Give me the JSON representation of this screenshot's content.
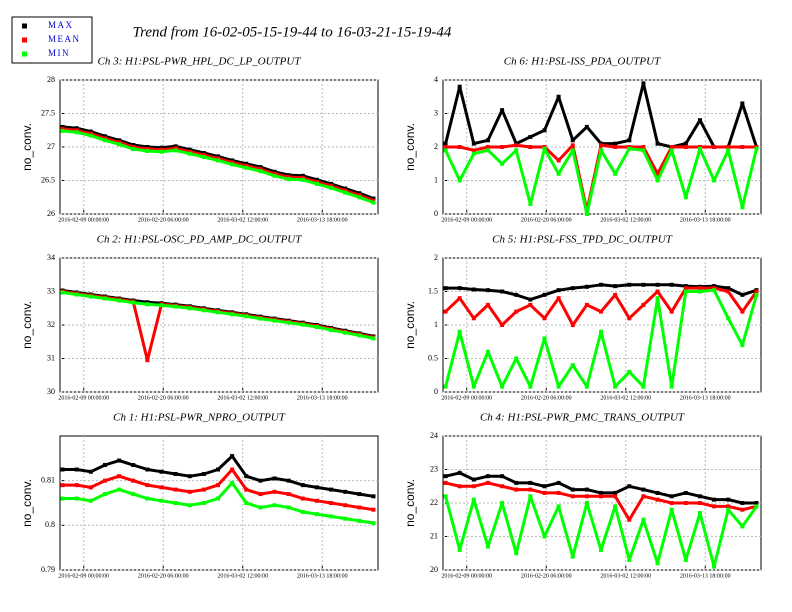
{
  "title": "Trend from 16-02-05-15-19-44 to 16-03-21-15-19-44",
  "chart_data": [
    {
      "type": "line",
      "title": "Ch 3: H1:PSL-PWR_HPL_DC_LP_OUTPUT",
      "ylabel": "no_conv.",
      "x": [
        "2016-02-06 00:00:00",
        "2016-02-08 00:00:00",
        "2016-02-10 00:00:00",
        "2016-02-12 00:00:00",
        "2016-02-14 00:00:00",
        "2016-02-16 00:00:00",
        "2016-02-18 00:00:00",
        "2016-02-20 00:00:00",
        "2016-02-22 00:00:00",
        "2016-02-24 00:00:00",
        "2016-02-26 00:00:00",
        "2016-02-28 00:00:00",
        "2016-03-01 00:00:00",
        "2016-03-03 00:00:00",
        "2016-03-05 00:00:00",
        "2016-03-07 00:00:00",
        "2016-03-09 00:00:00",
        "2016-03-11 00:00:00",
        "2016-03-13 00:00:00",
        "2016-03-15 00:00:00",
        "2016-03-17 00:00:00",
        "2016-03-19 00:00:00",
        "2016-03-21 00:00:00"
      ],
      "xlim": [
        "2016-02-05 15:19:44",
        "2016-03-21 15:19:44"
      ],
      "xticks": [
        "2016-02-09 00:00:00",
        "2016-02-20 06:00:00",
        "2016-03-02 12:00:00",
        "2016-03-13 18:00:00"
      ],
      "ylim": [
        26,
        28
      ],
      "yticks": [
        26,
        26.5,
        27,
        27.5,
        28
      ],
      "grid": true,
      "series": [
        {
          "name": "MAX",
          "color": "#000000",
          "values": [
            27.3,
            27.28,
            27.23,
            27.16,
            27.1,
            27.03,
            27.0,
            26.99,
            27.01,
            26.96,
            26.91,
            26.86,
            26.8,
            26.75,
            26.7,
            26.63,
            26.58,
            26.57,
            26.51,
            26.45,
            26.38,
            26.31,
            26.23
          ]
        },
        {
          "name": "MEAN",
          "color": "#ff0000",
          "values": [
            27.27,
            27.25,
            27.2,
            27.13,
            27.07,
            27.0,
            26.97,
            26.96,
            26.98,
            26.93,
            26.88,
            26.83,
            26.77,
            26.72,
            26.67,
            26.6,
            26.55,
            26.54,
            26.48,
            26.42,
            26.35,
            26.28,
            26.2
          ]
        },
        {
          "name": "MIN",
          "color": "#00ff00",
          "values": [
            27.24,
            27.22,
            27.17,
            27.1,
            27.04,
            26.97,
            26.94,
            26.93,
            26.95,
            26.9,
            26.85,
            26.8,
            26.74,
            26.69,
            26.64,
            26.57,
            26.52,
            26.51,
            26.45,
            26.39,
            26.32,
            26.25,
            26.17
          ]
        }
      ]
    },
    {
      "type": "line",
      "title": "Ch 2: H1:PSL-OSC_PD_AMP_DC_OUTPUT",
      "ylabel": "no_conv.",
      "x": [
        "2016-02-06 00:00:00",
        "2016-02-08 00:00:00",
        "2016-02-10 00:00:00",
        "2016-02-12 00:00:00",
        "2016-02-14 00:00:00",
        "2016-02-16 00:00:00",
        "2016-02-18 00:00:00",
        "2016-02-20 00:00:00",
        "2016-02-22 00:00:00",
        "2016-02-24 00:00:00",
        "2016-02-26 00:00:00",
        "2016-02-28 00:00:00",
        "2016-03-01 00:00:00",
        "2016-03-03 00:00:00",
        "2016-03-05 00:00:00",
        "2016-03-07 00:00:00",
        "2016-03-09 00:00:00",
        "2016-03-11 00:00:00",
        "2016-03-13 00:00:00",
        "2016-03-15 00:00:00",
        "2016-03-17 00:00:00",
        "2016-03-19 00:00:00",
        "2016-03-21 00:00:00"
      ],
      "xlim": [
        "2016-02-05 15:19:44",
        "2016-03-21 15:19:44"
      ],
      "xticks": [
        "2016-02-09 00:00:00",
        "2016-02-20 06:00:00",
        "2016-03-02 12:00:00",
        "2016-03-13 18:00:00"
      ],
      "ylim": [
        30,
        34
      ],
      "yticks": [
        30,
        31,
        32,
        33,
        34
      ],
      "grid": true,
      "series": [
        {
          "name": "MAX",
          "color": "#000000",
          "values": [
            33.03,
            32.97,
            32.91,
            32.85,
            32.79,
            32.73,
            32.68,
            32.65,
            32.61,
            32.56,
            32.5,
            32.44,
            32.38,
            32.32,
            32.25,
            32.19,
            32.13,
            32.07,
            32.0,
            31.91,
            31.83,
            31.75,
            31.66
          ]
        },
        {
          "name": "MEAN",
          "color": "#ff0000",
          "values": [
            33.0,
            32.94,
            32.88,
            32.82,
            32.76,
            32.7,
            30.95,
            32.62,
            32.58,
            32.53,
            32.47,
            32.41,
            32.35,
            32.29,
            32.22,
            32.16,
            32.1,
            32.04,
            31.97,
            31.88,
            31.8,
            31.72,
            31.63
          ]
        },
        {
          "name": "MIN",
          "color": "#00ff00",
          "values": [
            32.97,
            32.91,
            32.85,
            32.79,
            32.73,
            32.67,
            32.62,
            32.59,
            32.55,
            32.5,
            32.44,
            32.38,
            32.32,
            32.26,
            32.19,
            32.13,
            32.07,
            32.01,
            31.94,
            31.85,
            31.77,
            31.69,
            31.6
          ]
        }
      ]
    },
    {
      "type": "line",
      "title": "Ch 1: H1:PSL-PWR_NPRO_OUTPUT",
      "ylabel": "no_conv.",
      "x": [
        "2016-02-06 00:00:00",
        "2016-02-08 00:00:00",
        "2016-02-10 00:00:00",
        "2016-02-12 00:00:00",
        "2016-02-14 00:00:00",
        "2016-02-16 00:00:00",
        "2016-02-18 00:00:00",
        "2016-02-20 00:00:00",
        "2016-02-22 00:00:00",
        "2016-02-24 00:00:00",
        "2016-02-26 00:00:00",
        "2016-02-28 00:00:00",
        "2016-03-01 00:00:00",
        "2016-03-03 00:00:00",
        "2016-03-05 00:00:00",
        "2016-03-07 00:00:00",
        "2016-03-09 00:00:00",
        "2016-03-11 00:00:00",
        "2016-03-13 00:00:00",
        "2016-03-15 00:00:00",
        "2016-03-17 00:00:00",
        "2016-03-19 00:00:00",
        "2016-03-21 00:00:00"
      ],
      "xlim": [
        "2016-02-05 15:19:44",
        "2016-03-21 15:19:44"
      ],
      "xticks": [
        "2016-02-09 00:00:00",
        "2016-02-20 06:00:00",
        "2016-03-02 12:00:00",
        "2016-03-13 18:00:00"
      ],
      "ylim": [
        0.79,
        0.82
      ],
      "yticks": [
        0.79,
        0.8,
        0.81
      ],
      "grid": true,
      "series": [
        {
          "name": "MAX",
          "color": "#000000",
          "values": [
            0.8125,
            0.8125,
            0.812,
            0.8135,
            0.8145,
            0.8135,
            0.8125,
            0.812,
            0.8115,
            0.811,
            0.8115,
            0.8125,
            0.8155,
            0.811,
            0.81,
            0.8105,
            0.81,
            0.809,
            0.8085,
            0.808,
            0.8075,
            0.807,
            0.8065
          ]
        },
        {
          "name": "MEAN",
          "color": "#ff0000",
          "values": [
            0.809,
            0.809,
            0.8085,
            0.81,
            0.811,
            0.81,
            0.809,
            0.8085,
            0.808,
            0.8075,
            0.808,
            0.809,
            0.8125,
            0.808,
            0.807,
            0.8075,
            0.807,
            0.806,
            0.8055,
            0.805,
            0.8045,
            0.804,
            0.8035
          ]
        },
        {
          "name": "MIN",
          "color": "#00ff00",
          "values": [
            0.806,
            0.806,
            0.8055,
            0.807,
            0.808,
            0.807,
            0.806,
            0.8055,
            0.805,
            0.8045,
            0.805,
            0.806,
            0.8095,
            0.805,
            0.804,
            0.8045,
            0.804,
            0.803,
            0.8025,
            0.802,
            0.8015,
            0.801,
            0.8005
          ]
        }
      ]
    },
    {
      "type": "line",
      "title": "Ch 6: H1:PSL-ISS_PDA_OUTPUT",
      "ylabel": "no_conv.",
      "x": [
        "2016-02-06 00:00:00",
        "2016-02-08 00:00:00",
        "2016-02-10 00:00:00",
        "2016-02-12 00:00:00",
        "2016-02-14 00:00:00",
        "2016-02-16 00:00:00",
        "2016-02-18 00:00:00",
        "2016-02-20 00:00:00",
        "2016-02-22 00:00:00",
        "2016-02-24 00:00:00",
        "2016-02-26 00:00:00",
        "2016-02-28 00:00:00",
        "2016-03-01 00:00:00",
        "2016-03-03 00:00:00",
        "2016-03-05 00:00:00",
        "2016-03-07 00:00:00",
        "2016-03-09 00:00:00",
        "2016-03-11 00:00:00",
        "2016-03-13 00:00:00",
        "2016-03-15 00:00:00",
        "2016-03-17 00:00:00",
        "2016-03-19 00:00:00",
        "2016-03-21 00:00:00"
      ],
      "xlim": [
        "2016-02-05 15:19:44",
        "2016-03-21 15:19:44"
      ],
      "xticks": [
        "2016-02-09 00:00:00",
        "2016-02-20 06:00:00",
        "2016-03-02 12:00:00",
        "2016-03-13 18:00:00"
      ],
      "ylim": [
        0,
        4
      ],
      "yticks": [
        0,
        1,
        2,
        3,
        4
      ],
      "grid": true,
      "series": [
        {
          "name": "MAX",
          "color": "#000000",
          "values": [
            2.1,
            3.8,
            2.1,
            2.2,
            3.1,
            2.1,
            2.3,
            2.5,
            3.5,
            2.2,
            2.6,
            2.1,
            2.1,
            2.2,
            3.9,
            2.1,
            2.0,
            2.1,
            2.8,
            2.0,
            2.0,
            3.3,
            2.0
          ]
        },
        {
          "name": "MEAN",
          "color": "#ff0000",
          "values": [
            2.0,
            2.0,
            1.9,
            2.0,
            2.0,
            2.05,
            2.0,
            2.0,
            1.6,
            2.05,
            0.1,
            2.05,
            2.0,
            2.0,
            2.0,
            1.2,
            2.0,
            2.0,
            2.0,
            2.0,
            2.0,
            2.0,
            2.0
          ]
        },
        {
          "name": "MIN",
          "color": "#00ff00",
          "values": [
            1.9,
            1.0,
            1.8,
            1.9,
            1.5,
            1.9,
            0.3,
            1.95,
            1.2,
            1.9,
            0.0,
            1.9,
            1.2,
            1.95,
            1.9,
            1.0,
            1.9,
            0.5,
            1.95,
            1.0,
            1.9,
            0.2,
            1.95
          ]
        }
      ]
    },
    {
      "type": "line",
      "title": "Ch 5: H1:PSL-FSS_TPD_DC_OUTPUT",
      "ylabel": "no_conv.",
      "x": [
        "2016-02-06 00:00:00",
        "2016-02-08 00:00:00",
        "2016-02-10 00:00:00",
        "2016-02-12 00:00:00",
        "2016-02-14 00:00:00",
        "2016-02-16 00:00:00",
        "2016-02-18 00:00:00",
        "2016-02-20 00:00:00",
        "2016-02-22 00:00:00",
        "2016-02-24 00:00:00",
        "2016-02-26 00:00:00",
        "2016-02-28 00:00:00",
        "2016-03-01 00:00:00",
        "2016-03-03 00:00:00",
        "2016-03-05 00:00:00",
        "2016-03-07 00:00:00",
        "2016-03-09 00:00:00",
        "2016-03-11 00:00:00",
        "2016-03-13 00:00:00",
        "2016-03-15 00:00:00",
        "2016-03-17 00:00:00",
        "2016-03-19 00:00:00",
        "2016-03-21 00:00:00"
      ],
      "xlim": [
        "2016-02-05 15:19:44",
        "2016-03-21 15:19:44"
      ],
      "xticks": [
        "2016-02-09 00:00:00",
        "2016-02-20 06:00:00",
        "2016-03-02 12:00:00",
        "2016-03-13 18:00:00"
      ],
      "ylim": [
        0,
        2
      ],
      "yticks": [
        0,
        0.5,
        1,
        1.5,
        2
      ],
      "grid": true,
      "series": [
        {
          "name": "MAX",
          "color": "#000000",
          "values": [
            1.55,
            1.55,
            1.53,
            1.52,
            1.5,
            1.45,
            1.38,
            1.45,
            1.52,
            1.55,
            1.57,
            1.6,
            1.58,
            1.6,
            1.6,
            1.6,
            1.6,
            1.58,
            1.57,
            1.58,
            1.55,
            1.45,
            1.52
          ]
        },
        {
          "name": "MEAN",
          "color": "#ff0000",
          "values": [
            1.2,
            1.4,
            1.1,
            1.3,
            1.0,
            1.2,
            1.3,
            1.1,
            1.4,
            1.0,
            1.3,
            1.2,
            1.45,
            1.1,
            1.3,
            1.5,
            1.2,
            1.55,
            1.55,
            1.55,
            1.5,
            1.2,
            1.5
          ]
        },
        {
          "name": "MIN",
          "color": "#00ff00",
          "values": [
            0.08,
            0.9,
            0.08,
            0.6,
            0.08,
            0.5,
            0.08,
            0.8,
            0.08,
            0.4,
            0.08,
            0.9,
            0.08,
            0.3,
            0.08,
            1.4,
            0.08,
            1.5,
            1.5,
            1.52,
            1.1,
            0.7,
            1.45
          ]
        }
      ]
    },
    {
      "type": "line",
      "title": "Ch 4: H1:PSL-PWR_PMC_TRANS_OUTPUT",
      "ylabel": "no_conv.",
      "x": [
        "2016-02-06 00:00:00",
        "2016-02-08 00:00:00",
        "2016-02-10 00:00:00",
        "2016-02-12 00:00:00",
        "2016-02-14 00:00:00",
        "2016-02-16 00:00:00",
        "2016-02-18 00:00:00",
        "2016-02-20 00:00:00",
        "2016-02-22 00:00:00",
        "2016-02-24 00:00:00",
        "2016-02-26 00:00:00",
        "2016-02-28 00:00:00",
        "2016-03-01 00:00:00",
        "2016-03-03 00:00:00",
        "2016-03-05 00:00:00",
        "2016-03-07 00:00:00",
        "2016-03-09 00:00:00",
        "2016-03-11 00:00:00",
        "2016-03-13 00:00:00",
        "2016-03-15 00:00:00",
        "2016-03-17 00:00:00",
        "2016-03-19 00:00:00",
        "2016-03-21 00:00:00"
      ],
      "xlim": [
        "2016-02-05 15:19:44",
        "2016-03-21 15:19:44"
      ],
      "xticks": [
        "2016-02-09 00:00:00",
        "2016-02-20 06:00:00",
        "2016-03-02 12:00:00",
        "2016-03-13 18:00:00"
      ],
      "ylim": [
        20,
        24
      ],
      "yticks": [
        20,
        21,
        22,
        23,
        24
      ],
      "grid": true,
      "series": [
        {
          "name": "MAX",
          "color": "#000000",
          "values": [
            22.8,
            22.9,
            22.7,
            22.8,
            22.8,
            22.6,
            22.6,
            22.5,
            22.6,
            22.4,
            22.4,
            22.3,
            22.3,
            22.5,
            22.4,
            22.3,
            22.2,
            22.3,
            22.2,
            22.1,
            22.1,
            22.0,
            22.0
          ]
        },
        {
          "name": "MEAN",
          "color": "#ff0000",
          "values": [
            22.6,
            22.5,
            22.5,
            22.6,
            22.5,
            22.4,
            22.4,
            22.3,
            22.3,
            22.2,
            22.2,
            22.2,
            22.2,
            21.5,
            22.2,
            22.1,
            22.0,
            22.0,
            22.0,
            21.9,
            21.9,
            21.8,
            21.9
          ]
        },
        {
          "name": "MIN",
          "color": "#00ff00",
          "values": [
            22.2,
            20.6,
            22.1,
            20.7,
            22.0,
            20.5,
            22.2,
            21.0,
            21.9,
            20.4,
            22.0,
            20.6,
            21.9,
            20.3,
            21.5,
            20.2,
            21.8,
            20.3,
            21.7,
            20.1,
            21.8,
            21.3,
            21.9
          ]
        }
      ]
    }
  ]
}
